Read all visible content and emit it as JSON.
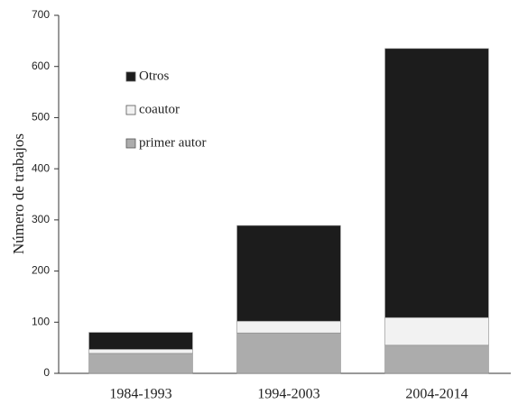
{
  "chart_data": {
    "type": "stacked_bar",
    "y_label": "Número de trabajos",
    "categories": [
      "1984-1993",
      "1994-2003",
      "2004-2014"
    ],
    "series": [
      {
        "name": "primer autor",
        "color": "#acacac",
        "values": [
          39,
          79,
          55
        ]
      },
      {
        "name": "coautor",
        "color": "#f2f2f2",
        "values": [
          8,
          23,
          54
        ]
      },
      {
        "name": "Otros",
        "color": "#1c1c1c",
        "values": [
          33,
          187,
          526
        ]
      }
    ],
    "ylim": [
      0,
      700
    ],
    "yticks": [
      0,
      100,
      200,
      300,
      400,
      500,
      600,
      700
    ]
  }
}
